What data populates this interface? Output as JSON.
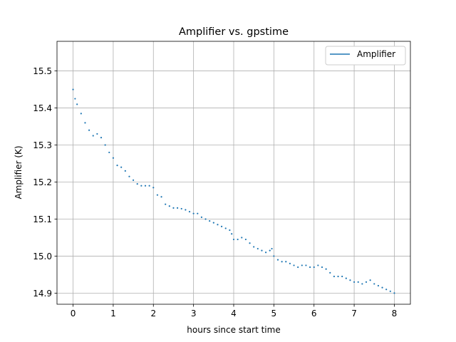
{
  "chart_data": {
    "type": "scatter",
    "title": "Amplifier vs. gpstime",
    "xlabel": "hours since start time",
    "ylabel": "Amplifier (K)",
    "xlim": [
      -0.4,
      8.4
    ],
    "ylim": [
      14.87,
      15.58
    ],
    "xticks": [
      0,
      1,
      2,
      3,
      4,
      5,
      6,
      7,
      8
    ],
    "yticks": [
      14.9,
      15.0,
      15.1,
      15.2,
      15.3,
      15.4,
      15.5
    ],
    "xtick_labels": [
      "0",
      "1",
      "2",
      "3",
      "4",
      "5",
      "6",
      "7",
      "8"
    ],
    "ytick_labels": [
      "14.9",
      "15.0",
      "15.1",
      "15.2",
      "15.3",
      "15.4",
      "15.5"
    ],
    "grid": true,
    "legend_position": "top-right",
    "series": [
      {
        "name": "Amplifier",
        "color": "#1f77b4",
        "x": [
          0.0,
          0.05,
          0.1,
          0.2,
          0.3,
          0.4,
          0.5,
          0.6,
          0.7,
          0.8,
          0.9,
          1.0,
          1.1,
          1.2,
          1.3,
          1.4,
          1.5,
          1.6,
          1.7,
          1.8,
          1.9,
          2.0,
          2.1,
          2.2,
          2.3,
          2.4,
          2.5,
          2.6,
          2.7,
          2.8,
          2.9,
          3.0,
          3.1,
          3.2,
          3.3,
          3.4,
          3.5,
          3.6,
          3.7,
          3.8,
          3.9,
          3.95,
          4.0,
          4.1,
          4.2,
          4.3,
          4.4,
          4.5,
          4.6,
          4.7,
          4.8,
          4.9,
          4.95,
          5.0,
          5.1,
          5.2,
          5.3,
          5.4,
          5.5,
          5.6,
          5.7,
          5.8,
          5.9,
          6.0,
          6.1,
          6.2,
          6.3,
          6.4,
          6.5,
          6.6,
          6.7,
          6.8,
          6.9,
          7.0,
          7.1,
          7.2,
          7.3,
          7.4,
          7.5,
          7.6,
          7.7,
          7.8,
          7.9,
          8.0
        ],
        "y": [
          15.45,
          15.425,
          15.41,
          15.385,
          15.36,
          15.34,
          15.325,
          15.33,
          15.32,
          15.3,
          15.28,
          15.265,
          15.245,
          15.24,
          15.23,
          15.215,
          15.205,
          15.195,
          15.19,
          15.19,
          15.19,
          15.185,
          15.165,
          15.16,
          15.14,
          15.135,
          15.13,
          15.13,
          15.128,
          15.125,
          15.12,
          15.115,
          15.115,
          15.105,
          15.1,
          15.095,
          15.09,
          15.085,
          15.08,
          15.075,
          15.07,
          15.06,
          15.045,
          15.045,
          15.05,
          15.045,
          15.035,
          15.025,
          15.02,
          15.015,
          15.01,
          15.015,
          15.02,
          15.0,
          14.99,
          14.985,
          14.985,
          14.98,
          14.975,
          14.97,
          14.975,
          14.975,
          14.97,
          14.97,
          14.975,
          14.97,
          14.965,
          14.955,
          14.945,
          14.945,
          14.945,
          14.94,
          14.935,
          14.93,
          14.93,
          14.925,
          14.93,
          14.935,
          14.925,
          14.92,
          14.915,
          14.91,
          14.905,
          14.9
        ]
      }
    ]
  }
}
